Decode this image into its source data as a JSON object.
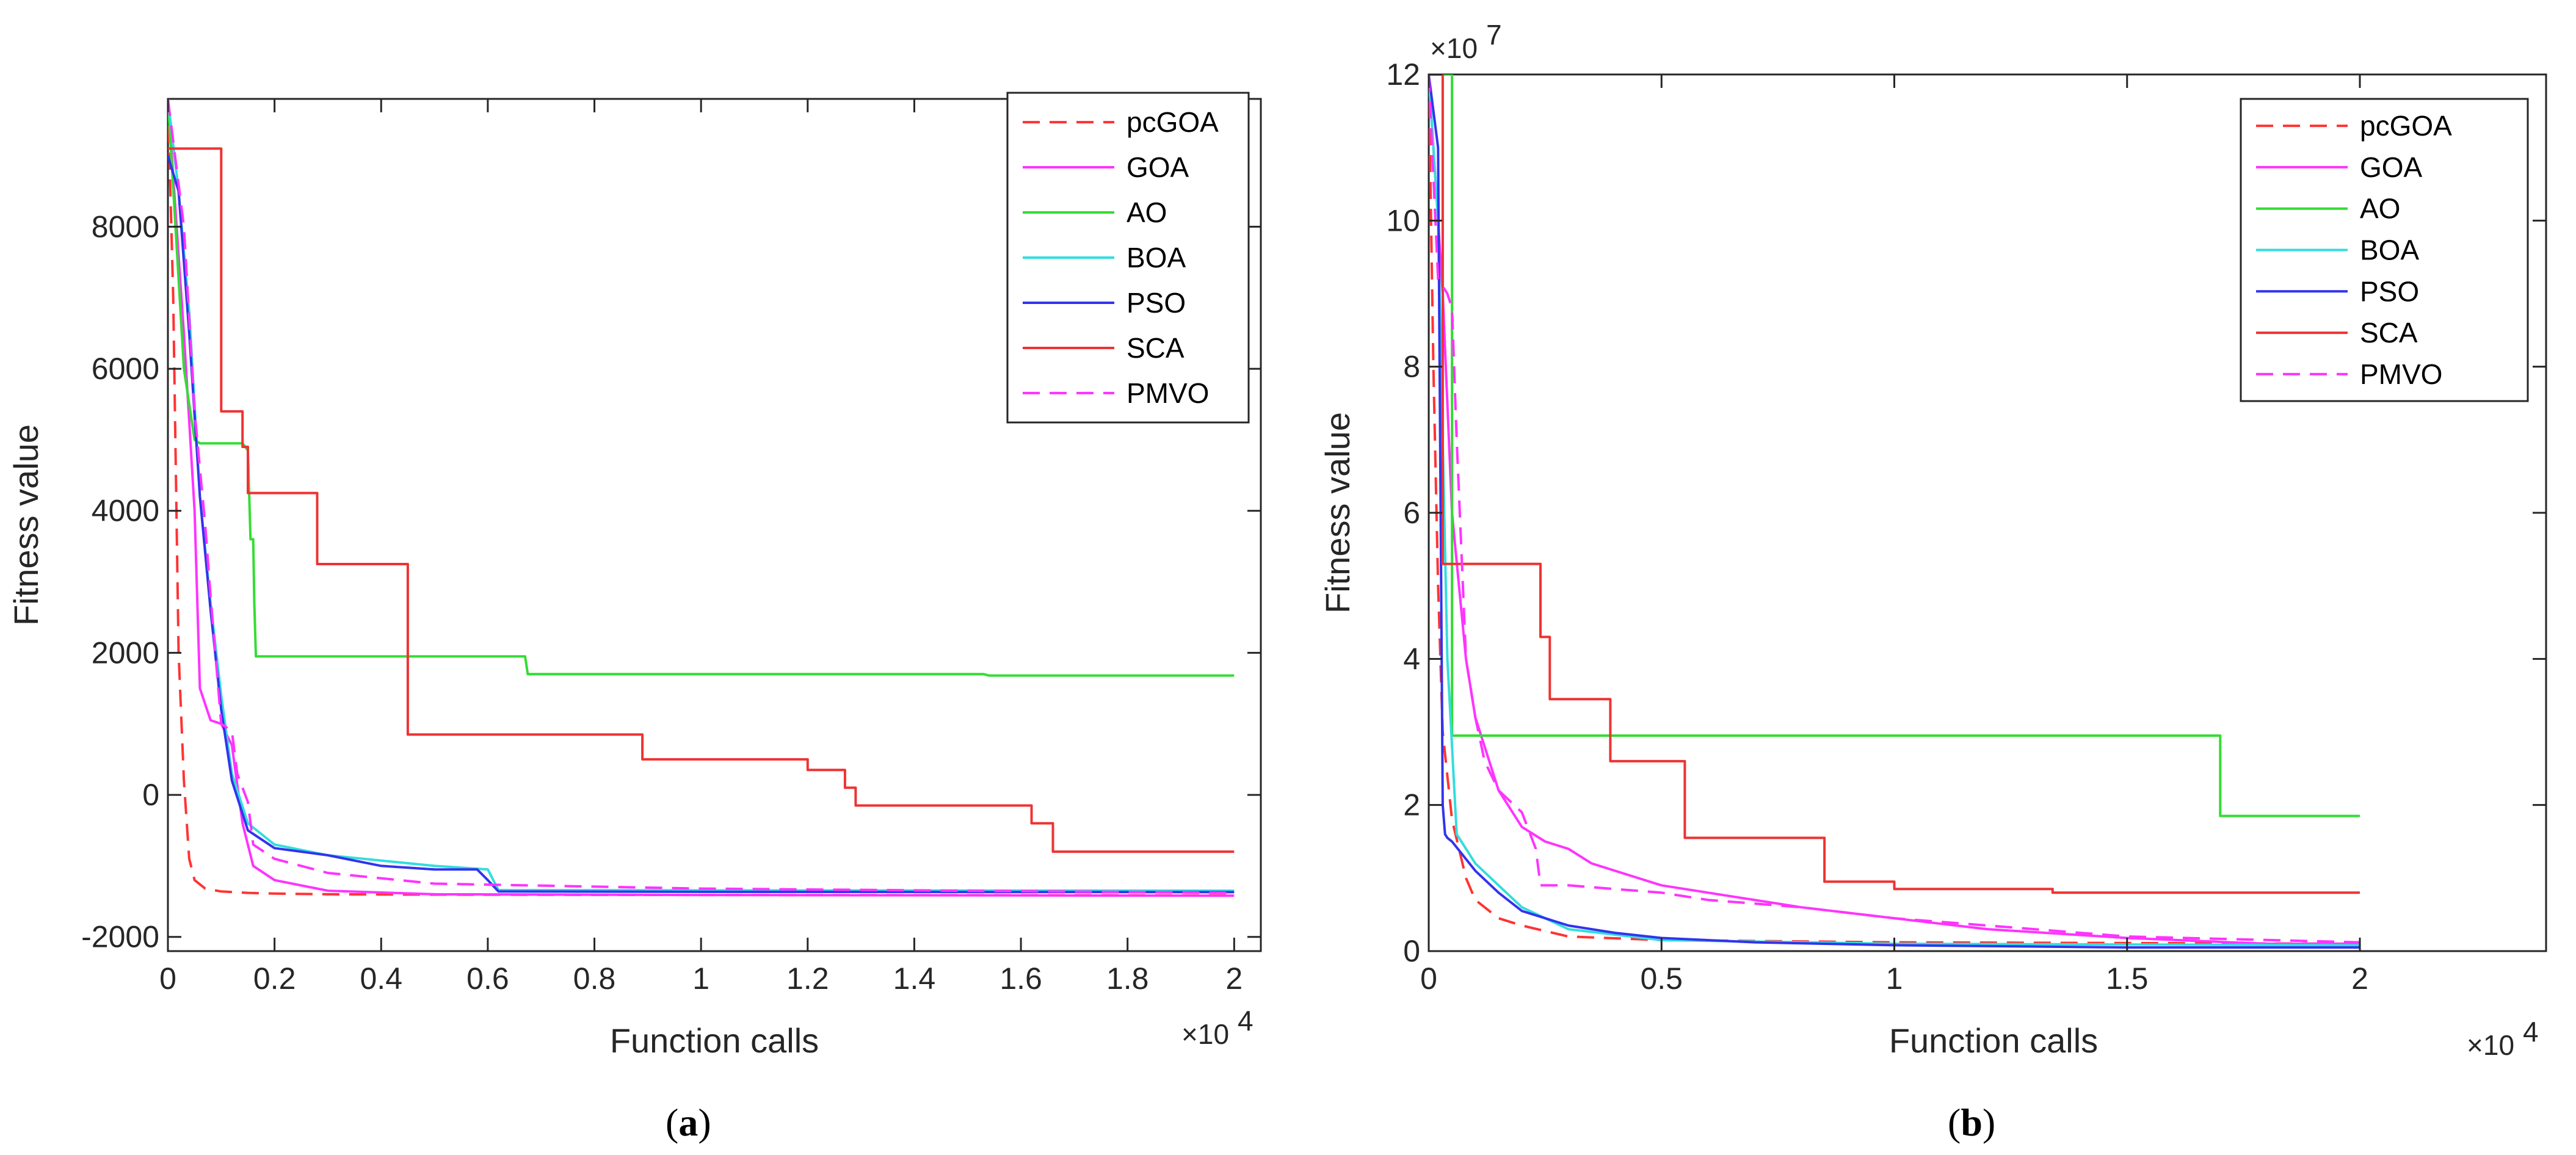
{
  "chart_data": [
    {
      "id": "a",
      "type": "line",
      "caption": "a",
      "xlabel": "Function calls",
      "ylabel": "Fitness value",
      "x_exponent_label": "×10",
      "x_exponent_power": "4",
      "y_exponent_label": "",
      "y_exponent_power": "",
      "xlim": [
        0,
        2.05
      ],
      "ylim": [
        -2200,
        9800
      ],
      "xticks": [
        0,
        0.2,
        0.4,
        0.6,
        0.8,
        1,
        1.2,
        1.4,
        1.6,
        1.8,
        2
      ],
      "xtick_labels": [
        "0",
        "0.2",
        "0.4",
        "0.6",
        "0.8",
        "1",
        "1.2",
        "1.4",
        "1.6",
        "1.8",
        "2"
      ],
      "yticks": [
        -2000,
        0,
        2000,
        4000,
        6000,
        8000
      ],
      "ytick_labels": [
        "-2000",
        "0",
        "2000",
        "4000",
        "6000",
        "8000"
      ],
      "grid": false,
      "legend_position": "top-right",
      "series": [
        {
          "name": "pcGOA",
          "color": "#ff3333",
          "dash": "dashed",
          "x": [
            0,
            0.01,
            0.02,
            0.03,
            0.04,
            0.05,
            0.07,
            0.1,
            0.15,
            0.2,
            0.3,
            0.5,
            1.0,
            2.0
          ],
          "y": [
            9800,
            7000,
            2000,
            200,
            -900,
            -1200,
            -1320,
            -1360,
            -1380,
            -1390,
            -1400,
            -1405,
            -1410,
            -1415
          ]
        },
        {
          "name": "GOA",
          "color": "#ff33ff",
          "dash": "solid",
          "x": [
            0,
            0.03,
            0.05,
            0.06,
            0.08,
            0.1,
            0.12,
            0.14,
            0.16,
            0.2,
            0.3,
            0.5,
            1.0,
            2.0
          ],
          "y": [
            9800,
            6500,
            4000,
            1500,
            1050,
            1000,
            700,
            -400,
            -1000,
            -1200,
            -1350,
            -1400,
            -1410,
            -1420
          ]
        },
        {
          "name": "AO",
          "color": "#33dd33",
          "dash": "solid",
          "x": [
            0,
            0.03,
            0.05,
            0.06,
            0.14,
            0.15,
            0.155,
            0.16,
            0.162,
            0.165,
            0.67,
            0.675,
            1.53,
            1.54,
            2.0
          ],
          "y": [
            9800,
            6000,
            5000,
            4950,
            4950,
            4850,
            3600,
            3600,
            2700,
            1950,
            1950,
            1700,
            1700,
            1680,
            1680
          ]
        },
        {
          "name": "BOA",
          "color": "#33dddd",
          "dash": "solid",
          "x": [
            0,
            0.02,
            0.04,
            0.06,
            0.08,
            0.1,
            0.12,
            0.15,
            0.2,
            0.3,
            0.5,
            0.6,
            0.62,
            1.0,
            2.0
          ],
          "y": [
            9800,
            8500,
            6800,
            4200,
            2700,
            1400,
            300,
            -400,
            -700,
            -850,
            -1000,
            -1050,
            -1340,
            -1345,
            -1350
          ]
        },
        {
          "name": "PSO",
          "color": "#3333ee",
          "dash": "solid",
          "x": [
            0,
            0.02,
            0.04,
            0.06,
            0.08,
            0.1,
            0.12,
            0.15,
            0.2,
            0.25,
            0.3,
            0.4,
            0.5,
            0.58,
            0.6,
            0.62,
            1.0,
            2.0
          ],
          "y": [
            9000,
            8500,
            6500,
            4200,
            2600,
            1200,
            200,
            -500,
            -750,
            -800,
            -850,
            -1000,
            -1050,
            -1050,
            -1200,
            -1360,
            -1365,
            -1370
          ]
        },
        {
          "name": "SCA",
          "color": "#ee3333",
          "dash": "solid",
          "x": [
            0,
            0.1,
            0.1,
            0.14,
            0.14,
            0.15,
            0.15,
            0.28,
            0.28,
            0.45,
            0.45,
            0.89,
            0.89,
            1.2,
            1.2,
            1.27,
            1.27,
            1.29,
            1.29,
            1.62,
            1.62,
            1.66,
            1.66,
            2.0
          ],
          "y": [
            9100,
            9100,
            5400,
            5400,
            4900,
            4900,
            4250,
            4250,
            3250,
            3250,
            850,
            850,
            500,
            500,
            350,
            350,
            100,
            100,
            -150,
            -150,
            -400,
            -400,
            -800,
            -800
          ]
        },
        {
          "name": "PMVO",
          "color": "#ff33ff",
          "dash": "dashed",
          "x": [
            0,
            0.03,
            0.05,
            0.07,
            0.08,
            0.1,
            0.12,
            0.13,
            0.15,
            0.16,
            0.2,
            0.3,
            0.5,
            1.0,
            2.0
          ],
          "y": [
            9800,
            8000,
            5400,
            3800,
            2800,
            1000,
            900,
            300,
            -100,
            -700,
            -900,
            -1100,
            -1250,
            -1320,
            -1380
          ]
        }
      ]
    },
    {
      "id": "b",
      "type": "line",
      "caption": "b",
      "xlabel": "Function calls",
      "ylabel": "Fitness value",
      "x_exponent_label": "×10",
      "x_exponent_power": "4",
      "y_exponent_label": "×10",
      "y_exponent_power": "7",
      "xlim": [
        0,
        2.4
      ],
      "ylim": [
        0,
        12
      ],
      "xticks": [
        0,
        0.5,
        1,
        1.5,
        2
      ],
      "xtick_labels": [
        "0",
        "0.5",
        "1",
        "1.5",
        "2"
      ],
      "yticks": [
        0,
        2,
        4,
        6,
        8,
        10,
        12
      ],
      "ytick_labels": [
        "0",
        "2",
        "4",
        "6",
        "8",
        "10",
        "12"
      ],
      "grid": false,
      "legend_position": "top-right",
      "series": [
        {
          "name": "pcGOA",
          "color": "#ff3333",
          "dash": "dashed",
          "x": [
            0,
            0.01,
            0.02,
            0.03,
            0.05,
            0.08,
            0.1,
            0.15,
            0.2,
            0.3,
            0.5,
            1.0,
            2.0
          ],
          "y": [
            12,
            8,
            5,
            3,
            1.8,
            1.0,
            0.7,
            0.45,
            0.35,
            0.2,
            0.15,
            0.12,
            0.1
          ]
        },
        {
          "name": "GOA",
          "color": "#ff33ff",
          "dash": "solid",
          "x": [
            0,
            0.03,
            0.05,
            0.08,
            0.1,
            0.12,
            0.15,
            0.2,
            0.25,
            0.3,
            0.35,
            0.4,
            0.5,
            0.6,
            0.8,
            1.0,
            1.2,
            1.5,
            1.8,
            2.0
          ],
          "y": [
            12,
            9,
            6,
            4,
            3.2,
            2.8,
            2.2,
            1.7,
            1.5,
            1.4,
            1.2,
            1.1,
            0.9,
            0.8,
            0.6,
            0.45,
            0.3,
            0.18,
            0.1,
            0.1
          ]
        },
        {
          "name": "AO",
          "color": "#33dd33",
          "dash": "solid",
          "x": [
            0,
            0.05,
            0.05,
            1.7,
            1.7,
            2.0
          ],
          "y": [
            12,
            12,
            2.95,
            2.95,
            1.85,
            1.85
          ]
        },
        {
          "name": "BOA",
          "color": "#33dddd",
          "dash": "solid",
          "x": [
            0,
            0.02,
            0.04,
            0.06,
            0.1,
            0.15,
            0.2,
            0.3,
            0.5,
            1.0,
            2.0
          ],
          "y": [
            12,
            10,
            4,
            1.6,
            1.2,
            0.9,
            0.6,
            0.3,
            0.15,
            0.1,
            0.08
          ]
        },
        {
          "name": "PSO",
          "color": "#3333ee",
          "dash": "solid",
          "x": [
            0,
            0.02,
            0.03,
            0.035,
            0.04,
            0.05,
            0.1,
            0.15,
            0.2,
            0.3,
            0.4,
            0.5,
            0.7,
            1.0,
            1.5,
            2.0
          ],
          "y": [
            12,
            11,
            2,
            1.6,
            1.55,
            1.5,
            1.1,
            0.8,
            0.55,
            0.35,
            0.25,
            0.18,
            0.12,
            0.08,
            0.05,
            0.05
          ]
        },
        {
          "name": "SCA",
          "color": "#ee3333",
          "dash": "solid",
          "x": [
            0,
            0.03,
            0.03,
            0.24,
            0.24,
            0.26,
            0.26,
            0.39,
            0.39,
            0.55,
            0.55,
            0.85,
            0.85,
            1.0,
            1.0,
            1.34,
            1.34,
            2.0
          ],
          "y": [
            12,
            12,
            5.3,
            5.3,
            4.3,
            4.3,
            3.45,
            3.45,
            2.6,
            2.6,
            1.55,
            1.55,
            0.95,
            0.95,
            0.85,
            0.85,
            0.8,
            0.8
          ]
        },
        {
          "name": "PMVO",
          "color": "#ff33ff",
          "dash": "dashed",
          "x": [
            0,
            0.02,
            0.04,
            0.05,
            0.06,
            0.08,
            0.1,
            0.12,
            0.15,
            0.2,
            0.23,
            0.24,
            0.3,
            0.4,
            0.5,
            0.6,
            0.8,
            1.0,
            1.2,
            1.5,
            2.0
          ],
          "y": [
            12,
            9.2,
            9.0,
            8.8,
            7.0,
            4.0,
            3.2,
            2.6,
            2.2,
            1.9,
            1.4,
            0.9,
            0.9,
            0.85,
            0.8,
            0.7,
            0.6,
            0.45,
            0.35,
            0.2,
            0.12
          ]
        }
      ]
    }
  ]
}
